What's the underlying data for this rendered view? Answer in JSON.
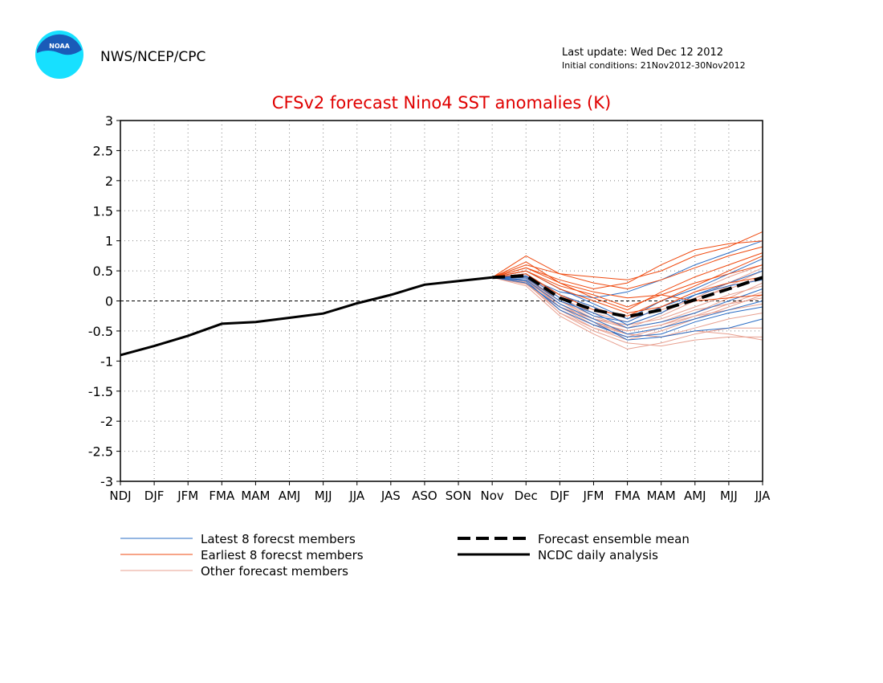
{
  "header": {
    "agency": "NWS/NCEP/CPC",
    "logo_text": "NOAA",
    "last_update": "Last update: Wed Dec 12 2012",
    "initial_conditions": "Initial conditions: 21Nov2012-30Nov2012"
  },
  "colors": {
    "title": "#e00000",
    "latest": "#2a6cc4",
    "earliest": "#ef4a10",
    "other": "#e8a090",
    "analysis": "#000000",
    "grid": "#808080",
    "logo_blue": "#1a5bb8",
    "logo_cyan": "#17e0ff"
  },
  "chart_data": {
    "type": "line",
    "title": "CFSv2 forecast Nino4 SST anomalies (K)",
    "categories": [
      "NDJ",
      "DJF",
      "JFM",
      "FMA",
      "MAM",
      "AMJ",
      "MJJ",
      "JJA",
      "JAS",
      "ASO",
      "SON",
      "Nov",
      "Dec",
      "DJF",
      "JFM",
      "FMA",
      "MAM",
      "AMJ",
      "MJJ",
      "JJA"
    ],
    "ylim": [
      -3,
      3
    ],
    "yticks": [
      -3,
      -2.5,
      -2,
      -1.5,
      -1,
      -0.5,
      0,
      0.5,
      1,
      1.5,
      2,
      2.5,
      3
    ],
    "ytick_labels": [
      "-3",
      "-2.5",
      "-2",
      "-1.5",
      "-1",
      "-0.5",
      "0",
      "0.5",
      "1",
      "1.5",
      "2",
      "2.5",
      "3"
    ],
    "grid": true,
    "zero_line": true,
    "analysis": {
      "name": "NCDC daily analysis",
      "values": [
        -0.9,
        -0.75,
        -0.58,
        -0.38,
        -0.35,
        -0.28,
        -0.21,
        -0.04,
        0.1,
        0.27,
        0.33,
        0.39
      ]
    },
    "ensemble_mean": {
      "name": "Forecast ensemble mean",
      "values": [
        0.39,
        0.42,
        0.05,
        -0.15,
        -0.26,
        -0.15,
        0.02,
        0.2,
        0.39
      ]
    },
    "forecast_members": {
      "latest": [
        [
          0.39,
          0.45,
          0.1,
          -0.1,
          -0.4,
          -0.2,
          0.1,
          0.3,
          0.5
        ],
        [
          0.39,
          0.35,
          -0.05,
          -0.3,
          -0.55,
          -0.45,
          -0.3,
          -0.15,
          0.0
        ],
        [
          0.39,
          0.4,
          0.15,
          0.05,
          0.15,
          0.35,
          0.6,
          0.8,
          1.0
        ],
        [
          0.39,
          0.3,
          -0.1,
          -0.35,
          -0.65,
          -0.6,
          -0.5,
          -0.45,
          -0.3
        ],
        [
          0.39,
          0.5,
          0.2,
          -0.05,
          -0.3,
          0.0,
          0.2,
          0.45,
          0.7
        ],
        [
          0.39,
          0.38,
          0.0,
          -0.2,
          -0.45,
          -0.35,
          -0.2,
          0.0,
          0.2
        ],
        [
          0.39,
          0.33,
          -0.15,
          -0.4,
          -0.6,
          -0.55,
          -0.35,
          -0.2,
          -0.1
        ],
        [
          0.39,
          0.42,
          0.05,
          -0.25,
          -0.35,
          -0.1,
          0.1,
          0.25,
          0.35
        ]
      ],
      "earliest": [
        [
          0.39,
          0.6,
          0.45,
          0.4,
          0.35,
          0.5,
          0.75,
          0.9,
          1.15
        ],
        [
          0.39,
          0.55,
          0.35,
          0.2,
          0.3,
          0.6,
          0.85,
          0.95,
          1.0
        ],
        [
          0.39,
          0.75,
          0.45,
          0.3,
          0.2,
          0.35,
          0.55,
          0.75,
          0.9
        ],
        [
          0.39,
          0.5,
          0.25,
          0.1,
          -0.1,
          0.1,
          0.3,
          0.45,
          0.6
        ],
        [
          0.39,
          0.65,
          0.3,
          0.15,
          0.05,
          0.1,
          0.0,
          0.05,
          0.1
        ],
        [
          0.39,
          0.45,
          0.1,
          -0.15,
          -0.25,
          0.0,
          0.25,
          0.5,
          0.75
        ],
        [
          0.39,
          0.5,
          0.2,
          0.0,
          -0.2,
          -0.1,
          0.15,
          0.3,
          0.4
        ],
        [
          0.39,
          0.55,
          0.3,
          0.05,
          -0.15,
          0.15,
          0.4,
          0.6,
          0.8
        ]
      ],
      "other": [
        [
          0.39,
          0.3,
          -0.2,
          -0.5,
          -0.7,
          -0.75,
          -0.65,
          -0.6,
          -0.6
        ],
        [
          0.39,
          0.25,
          -0.25,
          -0.55,
          -0.8,
          -0.7,
          -0.55,
          -0.45,
          -0.45
        ],
        [
          0.39,
          0.35,
          -0.1,
          -0.4,
          -0.55,
          -0.6,
          -0.5,
          -0.55,
          -0.65
        ],
        [
          0.39,
          0.28,
          -0.15,
          -0.45,
          -0.65,
          -0.5,
          -0.3,
          -0.1,
          0.1
        ],
        [
          0.39,
          0.4,
          0.0,
          -0.3,
          -0.45,
          -0.25,
          0.0,
          0.25,
          0.5
        ],
        [
          0.39,
          0.32,
          -0.05,
          -0.35,
          -0.5,
          -0.4,
          -0.2,
          0.05,
          0.3
        ],
        [
          0.39,
          0.45,
          0.05,
          -0.2,
          -0.35,
          -0.1,
          0.15,
          0.4,
          0.6
        ],
        [
          0.39,
          0.38,
          -0.1,
          -0.3,
          -0.4,
          -0.3,
          -0.1,
          0.1,
          0.25
        ],
        [
          0.39,
          0.3,
          -0.2,
          -0.45,
          -0.6,
          -0.45,
          -0.25,
          -0.05,
          0.15
        ],
        [
          0.39,
          0.42,
          0.1,
          -0.1,
          -0.3,
          -0.15,
          0.05,
          0.2,
          0.4
        ],
        [
          0.39,
          0.35,
          0.0,
          -0.25,
          -0.45,
          -0.35,
          -0.15,
          -0.05,
          0.05
        ],
        [
          0.39,
          0.28,
          -0.1,
          -0.35,
          -0.55,
          -0.6,
          -0.45,
          -0.3,
          -0.2
        ],
        [
          0.39,
          0.4,
          -0.05,
          -0.3,
          -0.4,
          -0.2,
          0.05,
          0.3,
          0.55
        ],
        [
          0.39,
          0.33,
          -0.15,
          -0.4,
          -0.5,
          -0.4,
          -0.25,
          -0.15,
          -0.05
        ]
      ]
    },
    "legend": {
      "position": "bottom",
      "entries": [
        {
          "label": "Latest 8 forecst members",
          "style": "latest"
        },
        {
          "label": "Earliest 8 forecst members",
          "style": "earliest"
        },
        {
          "label": "Other forecast members",
          "style": "other"
        },
        {
          "label": "Forecast ensemble mean",
          "style": "mean"
        },
        {
          "label": "NCDC daily analysis",
          "style": "analysis"
        }
      ]
    }
  }
}
